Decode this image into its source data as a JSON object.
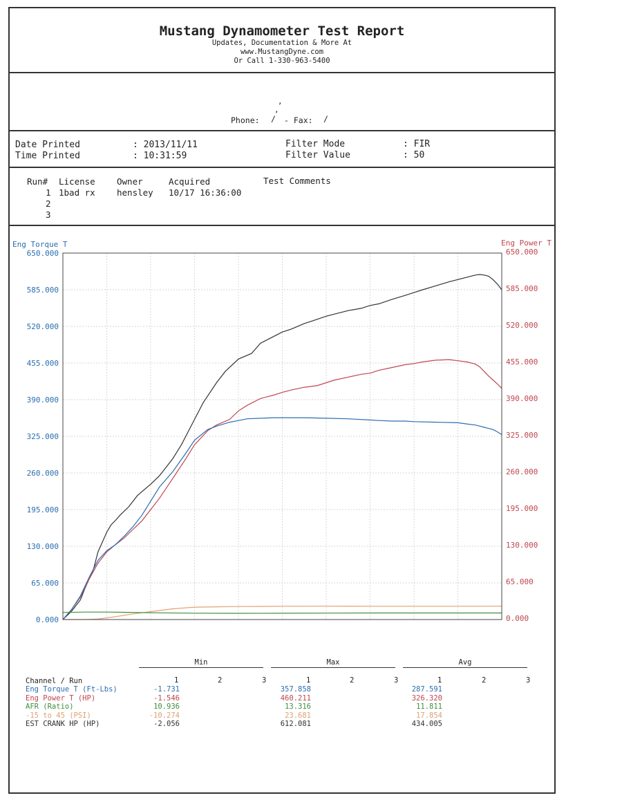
{
  "header": {
    "title": "Mustang Dynamometer Test Report",
    "line1": "Updates, Documentation & More At",
    "line2": "www.MustangDyne.com",
    "line3": "Or Call 1-330-963-5400"
  },
  "contact": {
    "comma": ",",
    "phone_label": "Phone:",
    "phone_value": "/",
    "fax_label": "- Fax:",
    "fax_value": "/"
  },
  "info": {
    "date_label": "Date Printed",
    "date_value": ": 2013/11/11",
    "time_label": "Time Printed",
    "time_value": ": 10:31:59",
    "filter_mode_label": "Filter Mode",
    "filter_mode_value": ": FIR",
    "filter_value_label": "Filter Value",
    "filter_value_value": ": 50"
  },
  "runs": {
    "headers": [
      "Run#",
      "License",
      "Owner",
      "Acquired",
      "Test Comments"
    ],
    "rows": [
      {
        "run": "1",
        "license": "1bad rx",
        "owner": "hensley",
        "acquired": "10/17 16:36:00"
      },
      {
        "run": "2",
        "license": "",
        "owner": "",
        "acquired": ""
      },
      {
        "run": "3",
        "license": "",
        "owner": "",
        "acquired": ""
      }
    ]
  },
  "colors": {
    "torque": "#2a6db0",
    "power": "#c0454f",
    "crank": "#333333",
    "afr": "#3c8f3c",
    "boost": "#e0a070",
    "grid": "#c8c8c8"
  },
  "chart_data": {
    "type": "line",
    "left_axis_label": "Eng Torque T",
    "right_axis_label": "Eng Power T",
    "ylim": [
      0,
      650
    ],
    "yticks": [
      "0.000",
      "65.000",
      "130.000",
      "195.000",
      "260.000",
      "325.000",
      "390.000",
      "455.000",
      "520.000",
      "585.000",
      "650.000"
    ],
    "x_range": [
      0,
      100
    ],
    "grid": true,
    "series": [
      {
        "name": "EST CRANK HP (HP)",
        "color_key": "crank",
        "x": [
          0,
          2,
          4,
          5,
          7,
          8,
          10,
          11,
          12,
          13,
          15,
          17,
          20,
          22,
          25,
          27,
          30,
          32,
          35,
          37,
          40,
          43,
          45,
          48,
          50,
          52,
          55,
          57,
          60,
          62,
          65,
          68,
          70,
          72,
          75,
          78,
          80,
          82,
          85,
          88,
          90,
          92,
          93,
          94,
          95,
          96,
          97,
          98,
          99,
          100
        ],
        "y": [
          0,
          15,
          35,
          55,
          90,
          120,
          155,
          168,
          176,
          185,
          200,
          220,
          240,
          255,
          285,
          310,
          355,
          385,
          420,
          440,
          462,
          472,
          490,
          502,
          510,
          515,
          525,
          530,
          538,
          542,
          548,
          552,
          557,
          560,
          568,
          575,
          580,
          585,
          592,
          599,
          603,
          607,
          609,
          611,
          612,
          611,
          609,
          603,
          595,
          585
        ]
      },
      {
        "name": "Eng Power T (HP)",
        "color_key": "power",
        "x": [
          0,
          2,
          4,
          6,
          8,
          10,
          12,
          14,
          16,
          18,
          20,
          22,
          25,
          28,
          30,
          33,
          35,
          38,
          40,
          42,
          45,
          48,
          50,
          52,
          55,
          58,
          60,
          62,
          65,
          68,
          70,
          72,
          75,
          78,
          80,
          82,
          85,
          88,
          90,
          92,
          94,
          95,
          96,
          97,
          98,
          99,
          100
        ],
        "y": [
          0,
          18,
          40,
          72,
          100,
          120,
          133,
          145,
          160,
          175,
          195,
          215,
          250,
          285,
          310,
          335,
          345,
          355,
          370,
          380,
          392,
          398,
          403,
          407,
          412,
          415,
          420,
          425,
          430,
          435,
          437,
          442,
          447,
          452,
          454,
          457,
          460,
          461,
          459,
          457,
          453,
          448,
          440,
          432,
          425,
          418,
          410
        ]
      },
      {
        "name": "Eng Torque T (Ft-Lbs)",
        "color_key": "torque",
        "x": [
          0,
          2,
          4,
          6,
          8,
          10,
          12,
          14,
          16,
          18,
          20,
          22,
          25,
          28,
          30,
          33,
          35,
          38,
          40,
          42,
          45,
          48,
          50,
          55,
          60,
          65,
          70,
          72,
          75,
          78,
          80,
          85,
          90,
          92,
          94,
          95,
          96,
          97,
          98,
          99,
          100
        ],
        "y": [
          0,
          18,
          42,
          75,
          105,
          122,
          133,
          148,
          165,
          185,
          210,
          235,
          262,
          295,
          318,
          337,
          343,
          350,
          353,
          356,
          357,
          358,
          358,
          358,
          357,
          356,
          354,
          353,
          352,
          352,
          351,
          350,
          349,
          347,
          345,
          343,
          341,
          339,
          337,
          333,
          328
        ]
      },
      {
        "name": "-15 to 45 (PSI)",
        "color_key": "boost",
        "x": [
          0,
          5,
          8,
          12,
          16,
          20,
          25,
          30,
          40,
          50,
          60,
          70,
          80,
          90,
          100
        ],
        "y": [
          0,
          0,
          1,
          5,
          10,
          14,
          19,
          22,
          23,
          23.5,
          23.7,
          23.6,
          23.5,
          23.6,
          23.7
        ]
      },
      {
        "name": "AFR (Ratio)",
        "color_key": "afr",
        "x": [
          0,
          5,
          10,
          15,
          20,
          30,
          40,
          50,
          60,
          70,
          80,
          90,
          100
        ],
        "y": [
          12.5,
          13.2,
          13.3,
          12.8,
          12.0,
          11.3,
          11.0,
          11.2,
          11.4,
          11.6,
          11.7,
          11.7,
          11.7
        ]
      }
    ]
  },
  "summary": {
    "group_headers": [
      "Min",
      "Max",
      "Avg"
    ],
    "channel_label": "Channel / Run",
    "run_numbers": [
      "1",
      "2",
      "3"
    ],
    "rows": [
      {
        "name": "Eng Torque T (Ft-Lbs)",
        "color_key": "torque",
        "min": "-1.731",
        "max": "357.858",
        "avg": "287.591"
      },
      {
        "name": "Eng Power T (HP)",
        "color_key": "power",
        "min": "-1.546",
        "max": "460.211",
        "avg": "326.320"
      },
      {
        "name": "AFR (Ratio)",
        "color_key": "afr",
        "min": "10.936",
        "max": "13.316",
        "avg": "11.811"
      },
      {
        "name": "-15 to 45 (PSI)",
        "color_key": "boost",
        "min": "-10.274",
        "max": "23.681",
        "avg": "17.854"
      },
      {
        "name": "EST CRANK HP (HP)",
        "color_key": "crank",
        "min": "-2.056",
        "max": "612.081",
        "avg": "434.005"
      }
    ]
  }
}
